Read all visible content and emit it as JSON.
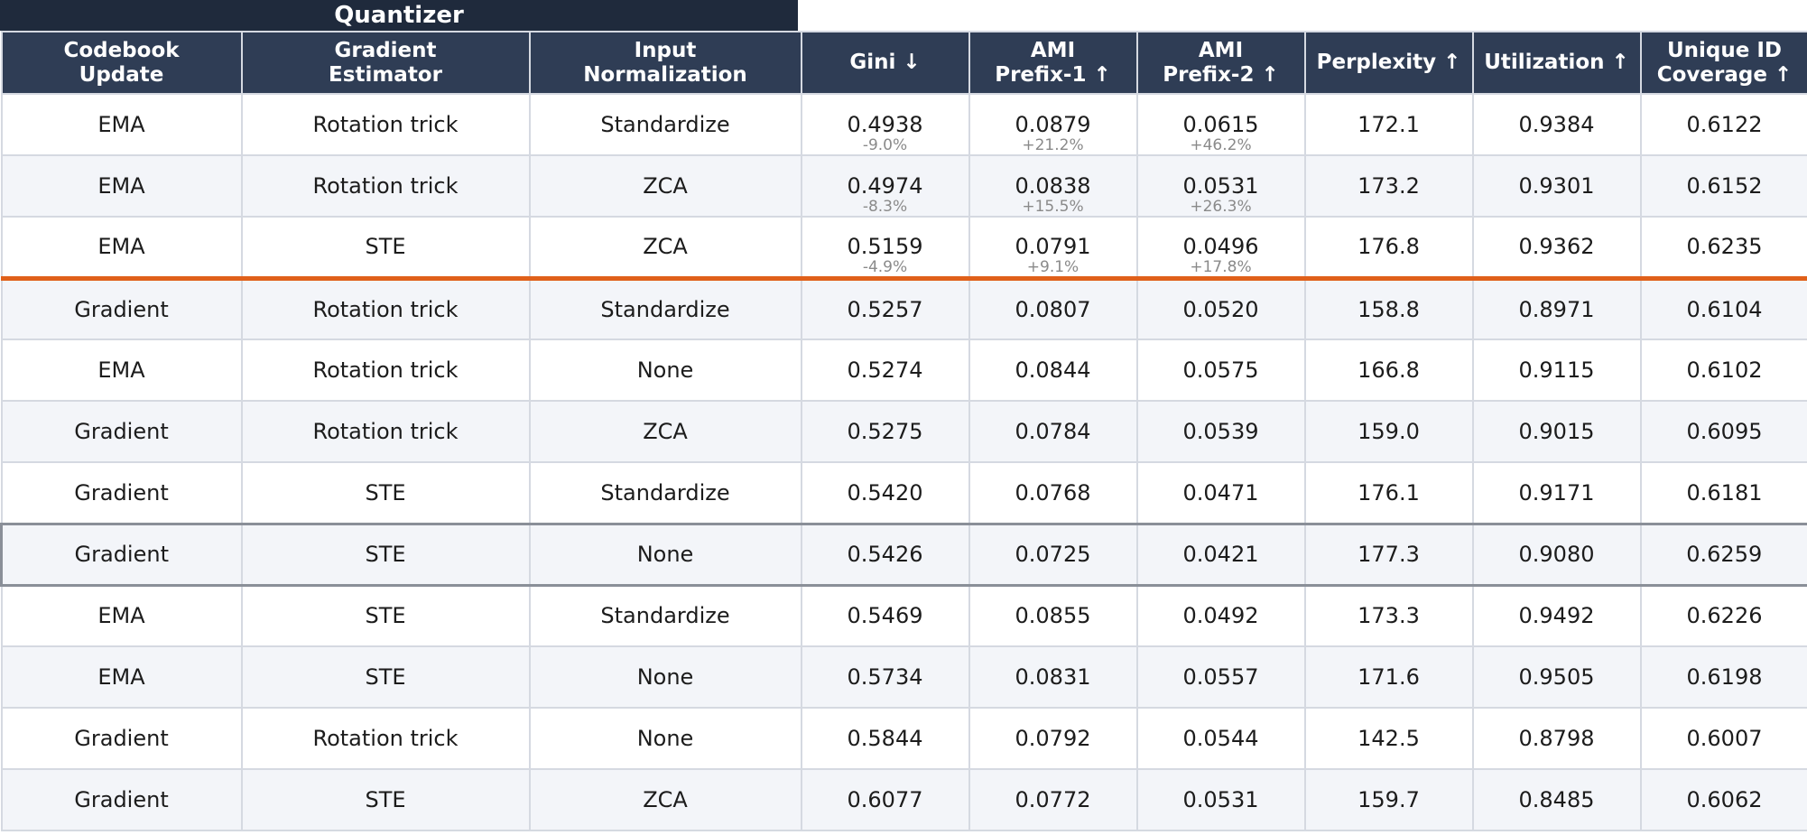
{
  "chart_data": {
    "type": "table",
    "group_header": "Quantizer",
    "columns": [
      [
        "Codebook",
        "Update"
      ],
      [
        "Gradient",
        "Estimator"
      ],
      [
        "Input",
        "Normalization"
      ],
      [
        "Gini ↓"
      ],
      [
        "AMI",
        "Prefix-1 ↑"
      ],
      [
        "AMI",
        "Prefix-2 ↑"
      ],
      [
        "Perplexity ↑"
      ],
      [
        "Utilization ↑"
      ],
      [
        "Unique ID",
        "Coverage ↑"
      ]
    ],
    "divider_after_row": 3,
    "highlight_row": 8,
    "highlight_color": "#e0601a",
    "rows": [
      {
        "cells": [
          "EMA",
          "Rotation trick",
          "Standardize",
          "0.4938",
          "0.0879",
          "0.0615",
          "172.1",
          "0.9384",
          "0.6122"
        ],
        "deltas": [
          "-9.0%",
          "+21.2%",
          "+46.2%"
        ]
      },
      {
        "cells": [
          "EMA",
          "Rotation trick",
          "ZCA",
          "0.4974",
          "0.0838",
          "0.0531",
          "173.2",
          "0.9301",
          "0.6152"
        ],
        "deltas": [
          "-8.3%",
          "+15.5%",
          "+26.3%"
        ]
      },
      {
        "cells": [
          "EMA",
          "STE",
          "ZCA",
          "0.5159",
          "0.0791",
          "0.0496",
          "176.8",
          "0.9362",
          "0.6235"
        ],
        "deltas": [
          "-4.9%",
          "+9.1%",
          "+17.8%"
        ]
      },
      {
        "cells": [
          "Gradient",
          "Rotation trick",
          "Standardize",
          "0.5257",
          "0.0807",
          "0.0520",
          "158.8",
          "0.8971",
          "0.6104"
        ]
      },
      {
        "cells": [
          "EMA",
          "Rotation trick",
          "None",
          "0.5274",
          "0.0844",
          "0.0575",
          "166.8",
          "0.9115",
          "0.6102"
        ]
      },
      {
        "cells": [
          "Gradient",
          "Rotation trick",
          "ZCA",
          "0.5275",
          "0.0784",
          "0.0539",
          "159.0",
          "0.9015",
          "0.6095"
        ]
      },
      {
        "cells": [
          "Gradient",
          "STE",
          "Standardize",
          "0.5420",
          "0.0768",
          "0.0471",
          "176.1",
          "0.9171",
          "0.6181"
        ]
      },
      {
        "cells": [
          "Gradient",
          "STE",
          "None",
          "0.5426",
          "0.0725",
          "0.0421",
          "177.3",
          "0.9080",
          "0.6259"
        ]
      },
      {
        "cells": [
          "EMA",
          "STE",
          "Standardize",
          "0.5469",
          "0.0855",
          "0.0492",
          "173.3",
          "0.9492",
          "0.6226"
        ]
      },
      {
        "cells": [
          "EMA",
          "STE",
          "None",
          "0.5734",
          "0.0831",
          "0.0557",
          "171.6",
          "0.9505",
          "0.6198"
        ]
      },
      {
        "cells": [
          "Gradient",
          "Rotation trick",
          "None",
          "0.5844",
          "0.0792",
          "0.0544",
          "142.5",
          "0.8798",
          "0.6007"
        ]
      },
      {
        "cells": [
          "Gradient",
          "STE",
          "ZCA",
          "0.6077",
          "0.0772",
          "0.0531",
          "159.7",
          "0.8485",
          "0.6062"
        ]
      }
    ]
  }
}
